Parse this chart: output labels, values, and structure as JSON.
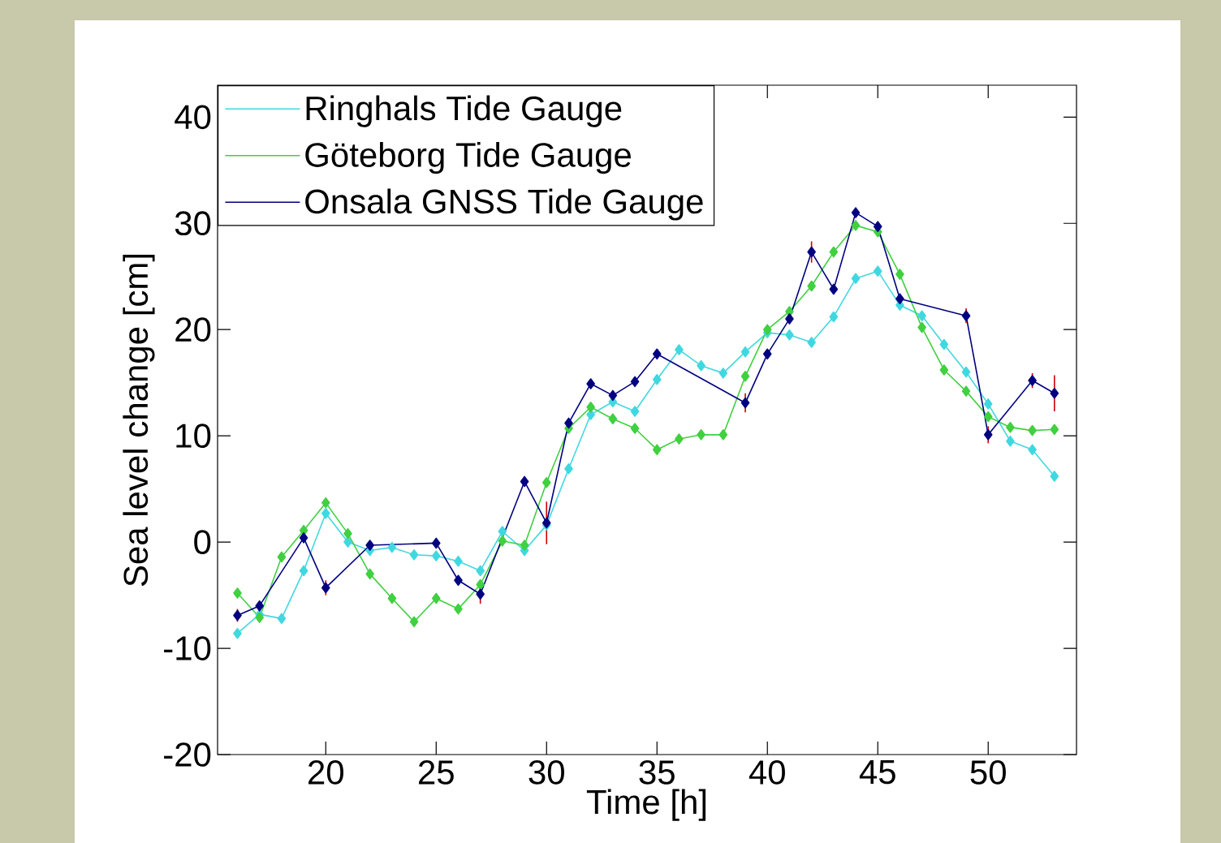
{
  "chart_data": {
    "type": "line",
    "xlabel": "Time [h]",
    "ylabel": "Sea level change [cm]",
    "xlim": [
      15.1,
      54
    ],
    "ylim": [
      -20,
      43
    ],
    "xticks": [
      20,
      25,
      30,
      35,
      40,
      45,
      50
    ],
    "yticks": [
      -20,
      -10,
      0,
      10,
      20,
      30,
      40
    ],
    "grid": false,
    "legend": "top left",
    "marker": "diamond",
    "line_style": "solid",
    "series": [
      {
        "name": "Ringhals Tide Gauge",
        "color": "#40d8e0",
        "x": [
          16,
          17,
          18,
          19,
          20,
          21,
          22,
          23,
          24,
          25,
          26,
          27,
          28,
          29,
          30,
          31,
          32,
          33,
          34,
          35,
          36,
          37,
          38,
          39,
          40,
          41,
          42,
          43,
          44,
          45,
          46,
          47,
          48,
          49,
          50,
          51,
          52,
          53
        ],
        "values": [
          -8.6,
          -6.8,
          -7.2,
          -2.7,
          2.7,
          0,
          -0.8,
          -0.5,
          -1.2,
          -1.3,
          -1.8,
          -2.7,
          1.0,
          -0.8,
          1.6,
          6.9,
          12.0,
          13.2,
          12.3,
          15.3,
          18.1,
          16.6,
          15.9,
          17.9,
          19.7,
          19.5,
          18.8,
          21.2,
          24.8,
          25.5,
          22.3,
          21.3,
          18.6,
          16.0,
          13.0,
          9.5,
          8.7,
          6.2
        ]
      },
      {
        "name": "Göteborg Tide Gauge",
        "color": "#40d040",
        "x": [
          16,
          17,
          18,
          19,
          20,
          21,
          22,
          23,
          24,
          25,
          26,
          27,
          28,
          29,
          30,
          31,
          32,
          33,
          34,
          35,
          36,
          37,
          38,
          39,
          40,
          41,
          42,
          43,
          44,
          45,
          46,
          47,
          48,
          49,
          50,
          51,
          52,
          53
        ],
        "values": [
          -4.8,
          -7.1,
          -1.4,
          1.1,
          3.7,
          0.8,
          -3.0,
          -5.3,
          -7.5,
          -5.3,
          -6.3,
          -4.0,
          0.1,
          -0.3,
          5.6,
          10.7,
          12.7,
          11.6,
          10.7,
          8.7,
          9.7,
          10.1,
          10.1,
          15.6,
          20.0,
          21.7,
          24.1,
          27.3,
          29.8,
          29.2,
          25.2,
          20.2,
          16.2,
          14.2,
          11.8,
          10.8,
          10.5,
          10.6
        ]
      },
      {
        "name": "Onsala GNSS Tide Gauge",
        "color": "#000080",
        "x": [
          16,
          17,
          19,
          20,
          22,
          25,
          26,
          27,
          29,
          30,
          31,
          32,
          33,
          34,
          35,
          39,
          40,
          41,
          42,
          43,
          44,
          45,
          46,
          49,
          50,
          52,
          53
        ],
        "values": [
          -6.9,
          -6.0,
          0.4,
          -4.3,
          -0.3,
          -0.1,
          -3.6,
          -4.9,
          5.7,
          1.8,
          11.2,
          14.9,
          13.8,
          15.1,
          17.7,
          13.1,
          17.7,
          21.0,
          27.3,
          23.8,
          31.0,
          29.7,
          22.9,
          21.3,
          10.1,
          15.2,
          14.0
        ],
        "errors": [
          0.6,
          null,
          null,
          0.7,
          null,
          null,
          null,
          0.9,
          null,
          2.0,
          null,
          null,
          null,
          null,
          null,
          0.9,
          null,
          null,
          1.0,
          null,
          null,
          null,
          null,
          0.7,
          0.8,
          0.7,
          1.7
        ]
      }
    ]
  }
}
